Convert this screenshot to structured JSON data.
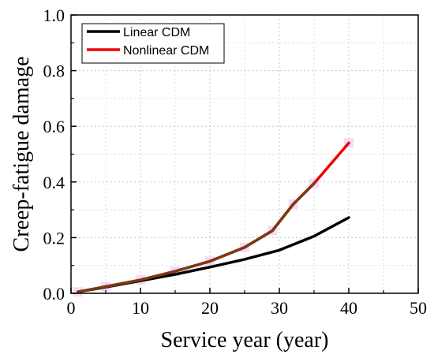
{
  "chart_data": {
    "type": "line",
    "xlabel": "Service year (year)",
    "ylabel": "Creep-fatigue damage",
    "xlim": [
      0,
      50
    ],
    "ylim": [
      0.0,
      1.0
    ],
    "xticks": [
      "0",
      "10",
      "20",
      "30",
      "40",
      "50"
    ],
    "yticks": [
      "0.0",
      "0.2",
      "0.4",
      "0.6",
      "0.8",
      "1.0"
    ],
    "grid": true,
    "legend_position": "top-left",
    "series": [
      {
        "name": "Linear CDM",
        "color": "#000000",
        "x": [
          1,
          5,
          10,
          15,
          20,
          25,
          30,
          35,
          40
        ],
        "y": [
          0.005,
          0.022,
          0.045,
          0.068,
          0.094,
          0.122,
          0.155,
          0.205,
          0.272
        ]
      },
      {
        "name": "Nonlinear CDM",
        "color": "#ee0000",
        "x": [
          1,
          5,
          10,
          15,
          20,
          25,
          29,
          32,
          35,
          40
        ],
        "y": [
          0.005,
          0.024,
          0.048,
          0.079,
          0.115,
          0.165,
          0.225,
          0.32,
          0.395,
          0.54
        ]
      }
    ],
    "overlap_color": "#7a3a12",
    "marker_color": "#f3b8f3"
  }
}
